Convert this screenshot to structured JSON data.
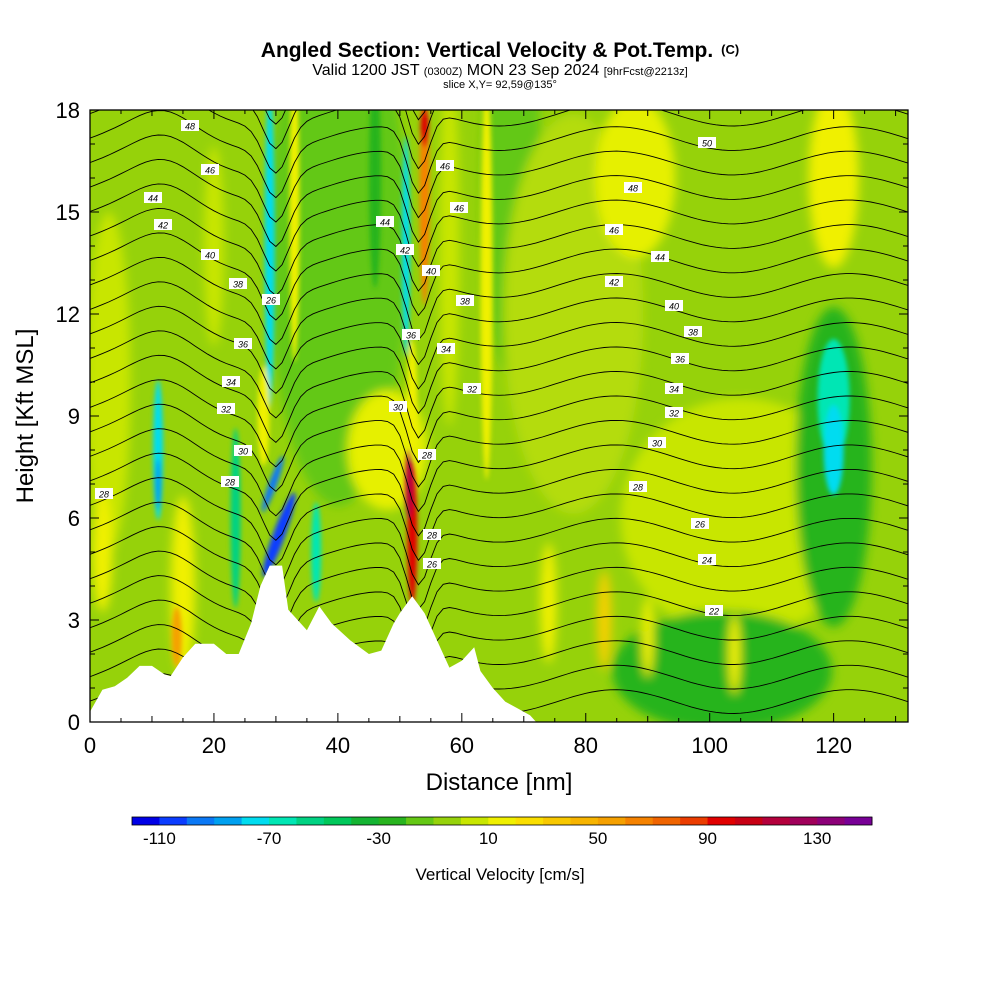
{
  "chart_data": {
    "type": "heatmap",
    "title": "Angled Section: Vertical Velocity & Pot.Temp.",
    "title_unit": "(C)",
    "subtitle_valid": "Valid 1200 JST",
    "subtitle_utc": "(0300Z)",
    "subtitle_date": "MON 23 Sep 2024",
    "subtitle_fcst": "[9hrFcst@2213z]",
    "slice_label": "slice X,Y= 92,59@135°",
    "xlabel": "Distance [nm]",
    "ylabel": "Height [Kft MSL]",
    "xlim": [
      0,
      132
    ],
    "ylim": [
      0,
      18
    ],
    "x_ticks": [
      "0",
      "20",
      "40",
      "60",
      "80",
      "100",
      "120"
    ],
    "y_ticks": [
      "0",
      "3",
      "6",
      "9",
      "12",
      "15",
      "18"
    ],
    "colorbar": {
      "label": "Vertical Velocity [cm/s]",
      "ticks": [
        "-110",
        "-70",
        "-30",
        "10",
        "50",
        "90",
        "130"
      ],
      "tick_values": [
        -110,
        -70,
        -30,
        10,
        50,
        90,
        130
      ],
      "range": [
        -120,
        150
      ],
      "colors": [
        "#0000e6",
        "#0a3cff",
        "#0a78f5",
        "#00a0f0",
        "#00dcf0",
        "#00e6b4",
        "#00d282",
        "#00c85a",
        "#14b432",
        "#28b41e",
        "#64c814",
        "#96d20a",
        "#c8e600",
        "#f0f000",
        "#fade00",
        "#f8c800",
        "#f7b400",
        "#f5a000",
        "#f58200",
        "#f06400",
        "#eb3c00",
        "#e10000",
        "#c80014",
        "#b4003c",
        "#a0005a",
        "#8c0078",
        "#780096"
      ]
    },
    "contour_labels": {
      "group_a": [
        "48",
        "46",
        "44",
        "42",
        "40",
        "38",
        "36",
        "34",
        "32",
        "30",
        "28",
        "28",
        "26"
      ],
      "group_b": [
        "46",
        "46",
        "44",
        "42",
        "40",
        "38",
        "36",
        "34",
        "32",
        "30",
        "28",
        "28",
        "26",
        "24"
      ],
      "group_c": [
        "50",
        "48",
        "46",
        "44",
        "42",
        "40",
        "38",
        "36",
        "34",
        "32",
        "30",
        "28",
        "26",
        "24",
        "22"
      ]
    },
    "terrain": [
      [
        0,
        0.3
      ],
      [
        2,
        0.95
      ],
      [
        4,
        1.05
      ],
      [
        6,
        1.3
      ],
      [
        8,
        1.65
      ],
      [
        10,
        1.65
      ],
      [
        12,
        1.4
      ],
      [
        13,
        1.35
      ],
      [
        15,
        1.9
      ],
      [
        17,
        2.3
      ],
      [
        20,
        2.3
      ],
      [
        22,
        2.0
      ],
      [
        24,
        2.0
      ],
      [
        26,
        2.9
      ],
      [
        27.5,
        4.0
      ],
      [
        29,
        4.6
      ],
      [
        31,
        4.6
      ],
      [
        32,
        3.3
      ],
      [
        34,
        2.9
      ],
      [
        35,
        2.7
      ],
      [
        37,
        3.4
      ],
      [
        39,
        2.9
      ],
      [
        42,
        2.4
      ],
      [
        45,
        2.0
      ],
      [
        47,
        2.1
      ],
      [
        49,
        2.9
      ],
      [
        50,
        3.2
      ],
      [
        52,
        3.7
      ],
      [
        54,
        3.2
      ],
      [
        56,
        2.4
      ],
      [
        58,
        1.6
      ],
      [
        60,
        1.8
      ],
      [
        62,
        2.2
      ],
      [
        63,
        1.5
      ],
      [
        65,
        1.0
      ],
      [
        67,
        0.6
      ],
      [
        69,
        0.4
      ],
      [
        71,
        0.2
      ],
      [
        72,
        0
      ],
      [
        132,
        0
      ]
    ]
  }
}
